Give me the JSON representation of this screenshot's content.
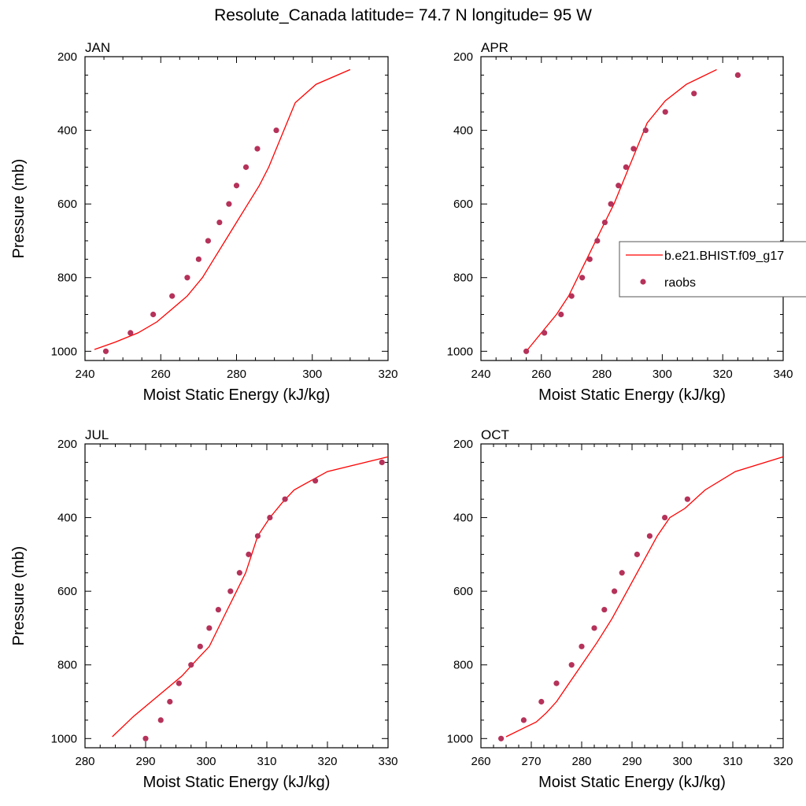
{
  "title": "Resolute_Canada  latitude= 74.7 N longitude= 95 W",
  "colors": {
    "model": "#ff0000",
    "obs": "#b5325a",
    "axis": "#000000"
  },
  "legend": {
    "model_label": "b.e21.BHIST.f09_g17",
    "obs_label": "raobs",
    "location": "right, inside APR panel"
  },
  "chart_data": [
    {
      "type": "line",
      "panel": "JAN",
      "xlabel": "Moist Static Energy (kJ/kg)",
      "ylabel": "Pressure (mb)",
      "xlim": [
        240,
        320
      ],
      "ylim": [
        1025,
        200
      ],
      "xticks": [
        240,
        260,
        280,
        300,
        320
      ],
      "yticks": [
        200,
        400,
        600,
        800,
        1000
      ],
      "series": [
        {
          "name": "b.e21.BHIST.f09_g17",
          "style": "line",
          "x": [
            242.5,
            248,
            254,
            259,
            263,
            267,
            271,
            274,
            277,
            280,
            283,
            286,
            288.5,
            290.5,
            295.5,
            301,
            310
          ],
          "y": [
            995,
            975,
            950,
            920,
            885,
            850,
            800,
            750,
            700,
            650,
            600,
            550,
            500,
            450,
            325,
            275,
            235
          ]
        },
        {
          "name": "raobs",
          "style": "markers",
          "x": [
            245.5,
            252,
            258,
            263,
            267,
            270,
            272.5,
            275.5,
            278,
            280,
            282.5,
            285.5,
            290.5
          ],
          "y": [
            1000,
            950,
            900,
            850,
            800,
            750,
            700,
            650,
            600,
            550,
            500,
            450,
            400
          ]
        }
      ]
    },
    {
      "type": "line",
      "panel": "APR",
      "xlabel": "Moist Static Energy (kJ/kg)",
      "ylabel": "",
      "xlim": [
        240,
        340
      ],
      "ylim": [
        1025,
        200
      ],
      "xticks": [
        240,
        260,
        280,
        300,
        320,
        340
      ],
      "yticks": [
        200,
        400,
        600,
        800,
        1000
      ],
      "series": [
        {
          "name": "b.e21.BHIST.f09_g17",
          "style": "line",
          "x": [
            255.5,
            260,
            265,
            269,
            272,
            275,
            278,
            281,
            284,
            286.5,
            289,
            291.5,
            295,
            301,
            308,
            318
          ],
          "y": [
            995,
            950,
            900,
            850,
            800,
            750,
            700,
            650,
            600,
            550,
            500,
            450,
            380,
            320,
            275,
            235
          ]
        },
        {
          "name": "raobs",
          "style": "markers",
          "x": [
            255,
            261,
            266.5,
            270,
            273.5,
            276,
            278.5,
            281,
            283,
            285.5,
            288,
            290.5,
            294.5,
            301,
            310.5,
            325
          ],
          "y": [
            1000,
            950,
            900,
            850,
            800,
            750,
            700,
            650,
            600,
            550,
            500,
            450,
            400,
            350,
            300,
            250
          ]
        }
      ]
    },
    {
      "type": "line",
      "panel": "JUL",
      "xlabel": "Moist Static Energy (kJ/kg)",
      "ylabel": "Pressure (mb)",
      "xlim": [
        280,
        330
      ],
      "ylim": [
        1025,
        200
      ],
      "xticks": [
        280,
        290,
        300,
        310,
        320,
        330
      ],
      "yticks": [
        200,
        400,
        600,
        800,
        1000
      ],
      "series": [
        {
          "name": "b.e21.BHIST.f09_g17",
          "style": "line",
          "x": [
            284.5,
            288,
            292,
            296,
            298.5,
            300.5,
            302,
            303.5,
            305,
            306.5,
            307.5,
            308.5,
            310.5,
            312.5,
            314.5,
            320,
            330
          ],
          "y": [
            995,
            940,
            885,
            830,
            785,
            750,
            700,
            650,
            600,
            550,
            500,
            450,
            400,
            360,
            325,
            275,
            235
          ]
        },
        {
          "name": "raobs",
          "style": "markers",
          "x": [
            290,
            292.5,
            294,
            295.5,
            297.5,
            299,
            300.5,
            302,
            304,
            305.5,
            307,
            308.5,
            310.5,
            313,
            318,
            329
          ],
          "y": [
            1000,
            950,
            900,
            850,
            800,
            750,
            700,
            650,
            600,
            550,
            500,
            450,
            400,
            350,
            300,
            250
          ]
        }
      ]
    },
    {
      "type": "line",
      "panel": "OCT",
      "xlabel": "Moist Static Energy (kJ/kg)",
      "ylabel": "",
      "xlim": [
        260,
        320
      ],
      "ylim": [
        1025,
        200
      ],
      "xticks": [
        260,
        270,
        280,
        290,
        300,
        310,
        320
      ],
      "yticks": [
        200,
        400,
        600,
        800,
        1000
      ],
      "series": [
        {
          "name": "b.e21.BHIST.f09_g17",
          "style": "line",
          "x": [
            265,
            268,
            271,
            273,
            275,
            277,
            280,
            283,
            286,
            289,
            292,
            295,
            297.5,
            300.5,
            304.5,
            310.5,
            320
          ],
          "y": [
            995,
            975,
            955,
            930,
            900,
            860,
            800,
            740,
            675,
            600,
            525,
            450,
            400,
            375,
            325,
            275,
            235
          ]
        },
        {
          "name": "raobs",
          "style": "markers",
          "x": [
            264,
            268.5,
            272,
            275,
            278,
            280,
            282.5,
            284.5,
            286.5,
            288,
            291,
            293.5,
            296.5,
            301
          ],
          "y": [
            1000,
            950,
            900,
            850,
            800,
            750,
            700,
            650,
            600,
            550,
            500,
            450,
            400,
            350
          ]
        }
      ]
    }
  ]
}
